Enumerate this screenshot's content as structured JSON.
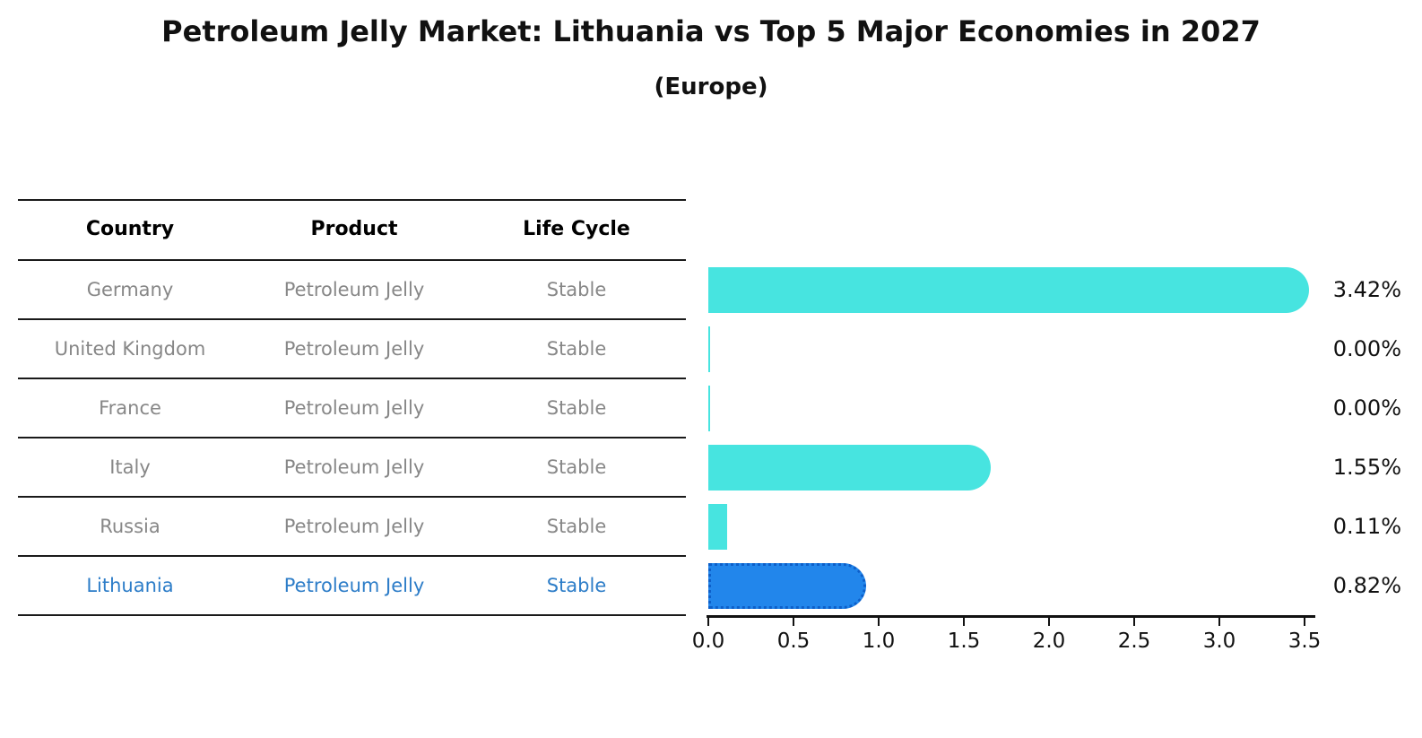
{
  "title": "Petroleum Jelly Market: Lithuania vs Top 5 Major Economies in 2027",
  "subtitle": "(Europe)",
  "table": {
    "headers": [
      "Country",
      "Product",
      "Life Cycle"
    ]
  },
  "chart_data": {
    "type": "bar",
    "orientation": "horizontal",
    "unit": "%",
    "title": "Petroleum Jelly Market: Lithuania vs Top 5 Major Economies in 2027",
    "subtitle": "(Europe)",
    "xlabel": "",
    "ylabel": "",
    "xlim": [
      0,
      3.58
    ],
    "grid": false,
    "legend": "none",
    "x_tick_labels": [
      "0.0",
      "0.5",
      "1.0",
      "1.5",
      "2.0",
      "2.5",
      "3.0",
      "3.5"
    ],
    "rows": [
      {
        "country": "Germany",
        "product": "Petroleum Jelly",
        "life_cycle": "Stable",
        "value": 3.42,
        "label": "3.42%",
        "highlight": false
      },
      {
        "country": "United Kingdom",
        "product": "Petroleum Jelly",
        "life_cycle": "Stable",
        "value": 0.0,
        "label": "0.00%",
        "highlight": false
      },
      {
        "country": "France",
        "product": "Petroleum Jelly",
        "life_cycle": "Stable",
        "value": 0.0,
        "label": "0.00%",
        "highlight": false
      },
      {
        "country": "Italy",
        "product": "Petroleum Jelly",
        "life_cycle": "Stable",
        "value": 1.55,
        "label": "1.55%",
        "highlight": false
      },
      {
        "country": "Russia",
        "product": "Petroleum Jelly",
        "life_cycle": "Stable",
        "value": 0.11,
        "label": "0.11%",
        "highlight": false
      },
      {
        "country": "Lithuania",
        "product": "Petroleum Jelly",
        "life_cycle": "Stable",
        "value": 0.82,
        "label": "0.82%",
        "highlight": true
      }
    ],
    "colors": {
      "bar_default": "#47E4E0",
      "bar_highlight": "#2286EB",
      "bar_highlight_border": "#0D5FC9",
      "row_text": "#878787",
      "highlight_text": "#2D7DC8",
      "header_text": "#000000",
      "value_text": "#111111",
      "line": "#1a1a1a"
    }
  }
}
